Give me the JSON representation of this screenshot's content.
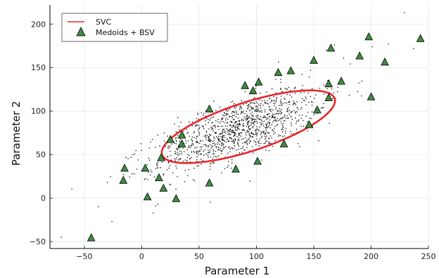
{
  "chart_data": {
    "type": "scatter",
    "xlabel": "Parameter 1",
    "ylabel": "Parameter 2",
    "xlim": [
      -80,
      250
    ],
    "ylim": [
      -58,
      222
    ],
    "x_ticks": [
      -50,
      0,
      50,
      100,
      150,
      200,
      250
    ],
    "y_ticks": [
      -50,
      0,
      50,
      100,
      150,
      200
    ],
    "grid": true,
    "legend_position": "top-left",
    "colors": {
      "svc": "#e8262b",
      "bsv_fill": "#3f8b3f",
      "bsv_edge": "#000000",
      "data": "#000000"
    },
    "legend": [
      {
        "label": "SVC",
        "marker": "line"
      },
      {
        "label": "Medoids + BSV",
        "marker": "triangle"
      }
    ],
    "svc_ellipse": {
      "center": [
        93,
        82
      ],
      "angle_deg": 24.3,
      "semi_major": 82,
      "semi_minor": 27
    },
    "data_cloud": {
      "center": [
        85,
        80
      ],
      "n_points": 1200,
      "sd_major": 40,
      "sd_minor": 15,
      "angle_deg": 28
    },
    "outlier_points": [
      [
        -70,
        -45
      ],
      [
        -38,
        -10
      ],
      [
        -26,
        -27
      ],
      [
        229,
        213
      ],
      [
        215,
        177
      ],
      [
        237,
        172
      ],
      [
        201,
        174
      ],
      [
        214,
        154
      ],
      [
        161,
        170
      ],
      [
        168,
        176
      ],
      [
        176,
        161
      ],
      [
        181,
        118
      ],
      [
        10,
        -17
      ],
      [
        12,
        -9
      ],
      [
        14,
        -7
      ],
      [
        -16,
        27
      ],
      [
        -30,
        18
      ]
    ],
    "medoids_bsv": [
      [
        -44,
        -46
      ],
      [
        -16,
        20
      ],
      [
        -15,
        34
      ],
      [
        3,
        34
      ],
      [
        5,
        1
      ],
      [
        15,
        23
      ],
      [
        17,
        46
      ],
      [
        19,
        11
      ],
      [
        25,
        67
      ],
      [
        30,
        -1
      ],
      [
        35,
        72
      ],
      [
        35,
        62
      ],
      [
        59,
        17
      ],
      [
        59,
        102
      ],
      [
        82,
        33
      ],
      [
        90,
        129
      ],
      [
        97,
        123
      ],
      [
        102,
        133
      ],
      [
        101,
        42
      ],
      [
        119,
        144
      ],
      [
        124,
        62
      ],
      [
        130,
        146
      ],
      [
        146,
        84
      ],
      [
        150,
        158
      ],
      [
        153,
        101
      ],
      [
        163,
        115
      ],
      [
        163,
        131
      ],
      [
        165,
        172
      ],
      [
        174,
        134
      ],
      [
        190,
        163
      ],
      [
        198,
        185
      ],
      [
        200,
        116
      ],
      [
        212,
        156
      ],
      [
        243,
        183
      ]
    ]
  }
}
